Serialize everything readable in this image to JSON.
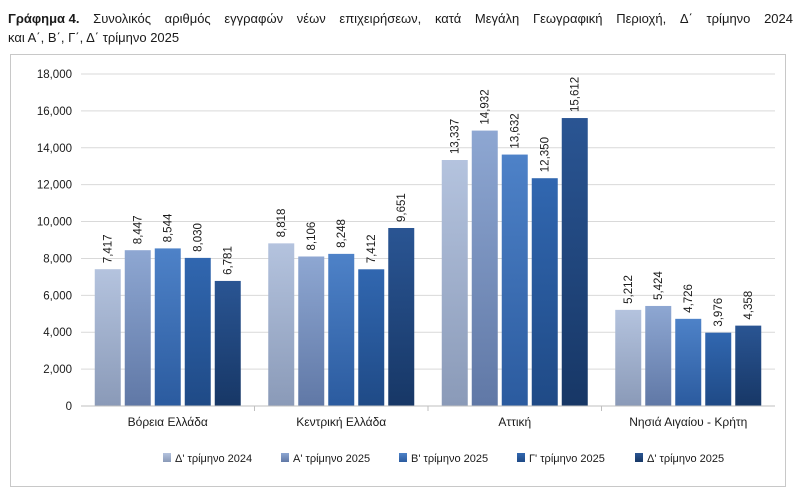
{
  "caption": {
    "lead": "Γράφημα 4.",
    "words": [
      "Συνολικός",
      "αριθμός",
      "εγγραφών",
      "νέων",
      "επιχειρήσεων,",
      "κατά",
      "Μεγάλη",
      "Γεωγραφική",
      "Περιοχή,",
      "Δ΄",
      "τρίμηνο",
      "2024"
    ],
    "line2": "και Α΄, Β΄, Γ΄, Δ΄ τρίμηνο 2025"
  },
  "chart_data": {
    "type": "bar",
    "title": "",
    "xlabel": "",
    "ylabel": "",
    "ylim": [
      0,
      18000
    ],
    "yticks": [
      0,
      2000,
      4000,
      6000,
      8000,
      10000,
      12000,
      14000,
      16000,
      18000
    ],
    "ytick_labels": [
      "0",
      "2,000",
      "4,000",
      "6,000",
      "8,000",
      "10,000",
      "12,000",
      "14,000",
      "16,000",
      "18,000"
    ],
    "grid": true,
    "legend_position": "bottom",
    "categories": [
      "Βόρεια Ελλάδα",
      "Κεντρική Ελλάδα",
      "Αττική",
      "Νησιά Αιγαίου - Κρήτη"
    ],
    "series": [
      {
        "name": "Δ' τρίμηνο 2024",
        "color": "#b4c3de",
        "color_dark": "#8a9ab8",
        "values": [
          7417,
          8818,
          13337,
          5212
        ],
        "labels": [
          "7,417",
          "8,818",
          "13,337",
          "5,212"
        ]
      },
      {
        "name": "Α' τρίμηνο 2025",
        "color": "#8ea7d2",
        "color_dark": "#6078a6",
        "values": [
          8447,
          8106,
          14932,
          5424
        ],
        "labels": [
          "8,447",
          "8,106",
          "14,932",
          "5,424"
        ]
      },
      {
        "name": "Β' τρίμηνο 2025",
        "color": "#4e82c8",
        "color_dark": "#2b5b9f",
        "values": [
          8544,
          8248,
          13632,
          4726
        ],
        "labels": [
          "8,544",
          "8,248",
          "13,632",
          "4,726"
        ]
      },
      {
        "name": "Γ' τρίμηνο 2025",
        "color": "#3167b0",
        "color_dark": "#1f4a86",
        "values": [
          8030,
          7412,
          12350,
          3976
        ],
        "labels": [
          "8,030",
          "7,412",
          "12,350",
          "3,976"
        ]
      },
      {
        "name": "Δ' τρίμηνο 2025",
        "color": "#2a5593",
        "color_dark": "#173766",
        "values": [
          6781,
          9651,
          15612,
          4358
        ],
        "labels": [
          "6,781",
          "9,651",
          "15,612",
          "4,358"
        ]
      }
    ]
  }
}
